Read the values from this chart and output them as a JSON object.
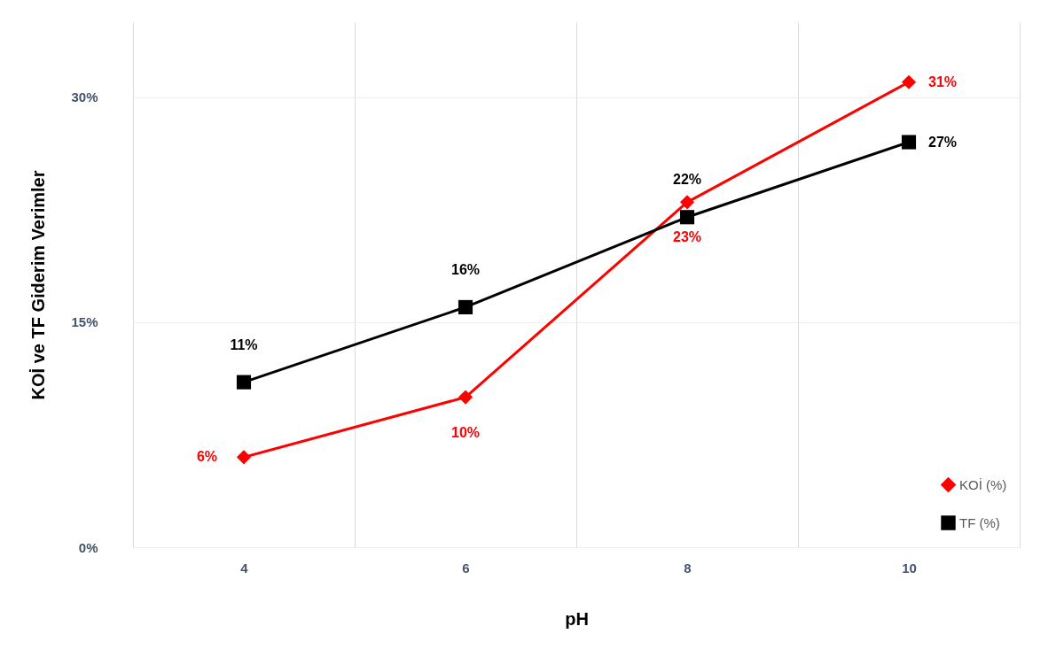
{
  "chart_data": {
    "type": "line",
    "xlabel": "pH",
    "ylabel": "KOİ ve TF Giderim Verimler",
    "categories": [
      "4",
      "6",
      "8",
      "10"
    ],
    "series": [
      {
        "name": "KOİ (%)",
        "color": "#ff0000",
        "marker": "diamond",
        "values": [
          6,
          10,
          23,
          31
        ],
        "value_labels": [
          "6%",
          "10%",
          "23%",
          "31%"
        ]
      },
      {
        "name": "TF (%)",
        "color": "#000000",
        "marker": "square",
        "values": [
          11,
          16,
          22,
          27
        ],
        "value_labels": [
          "11%",
          "16%",
          "22%",
          "27%"
        ]
      }
    ],
    "ylim": [
      0,
      35
    ],
    "yticks": [
      {
        "value": 0,
        "label": "0%"
      },
      {
        "value": 15,
        "label": "15%"
      },
      {
        "value": 30,
        "label": "30%"
      }
    ],
    "grid": true,
    "legend": "bottom right"
  }
}
